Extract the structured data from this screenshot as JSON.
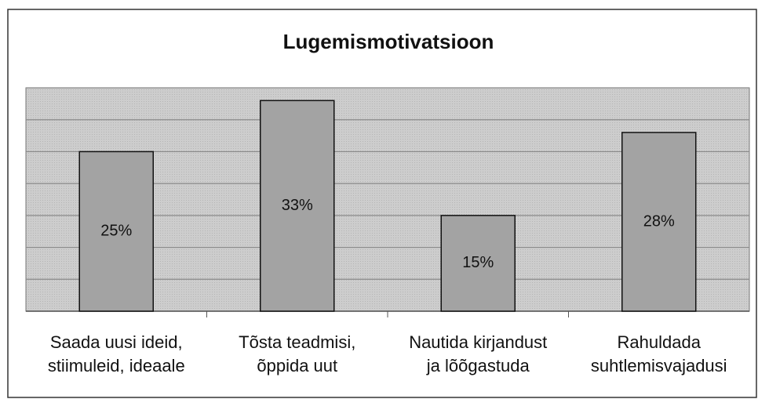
{
  "chart_data": {
    "type": "bar",
    "title": "Lugemismotivatsioon",
    "categories": [
      [
        "Saada uusi ideid,",
        "stiimuleid, ideaale"
      ],
      [
        "Tõsta teadmisi,",
        "õppida uut"
      ],
      [
        "Nautida kirjandust",
        "ja lõõgastuda"
      ],
      [
        "Rahuldada",
        "suhtlemisvajadusi"
      ]
    ],
    "values": [
      25,
      33,
      15,
      28
    ],
    "value_labels": [
      "25%",
      "33%",
      "15%",
      "28%"
    ],
    "color": "#a3a3a3",
    "ylim": [
      0,
      35
    ],
    "yticks": [
      0,
      5,
      10,
      15,
      20,
      25,
      30,
      35
    ],
    "grid": true
  }
}
